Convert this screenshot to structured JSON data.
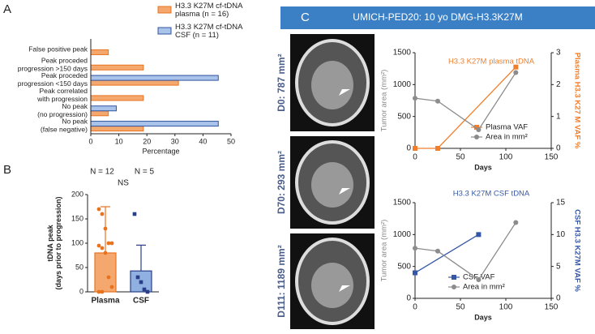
{
  "panel_labels": [
    "A",
    "B",
    "C"
  ],
  "header": "UMICH-PED20: 10 yo DMG-H3.3K27M",
  "images": [
    {
      "label": "D0: 787 mm²"
    },
    {
      "label": "D70: 293 mm²"
    },
    {
      "label": "D111: 1189 mm²"
    }
  ],
  "chart_data": [
    {
      "type": "hbar",
      "categories": [
        "False positive peak",
        "Peak proceded\nprogression >150 days",
        "Peak proceded\nprogression <150 days",
        "Peak correlated\nwith progression",
        "No peak\n(no progression)",
        "No peak\n(false negative)"
      ],
      "series": [
        {
          "name": "H3.3 K27M cf-tDNA\nplasma (n = 16)",
          "color": "#f5a86e",
          "stroke": "#e8731f",
          "values": [
            6.25,
            18.75,
            31.25,
            18.75,
            6.25,
            18.75
          ]
        },
        {
          "name": "H3.3 K27M cf-tDNA\nCSF (n = 11)",
          "color": "#a9c3ea",
          "stroke": "#2f54a0",
          "values": [
            0,
            0,
            45.45,
            0,
            9.09,
            45.45
          ]
        }
      ],
      "xlabel": "Percentage",
      "xlim": [
        0,
        50
      ],
      "xticks": [
        0,
        10,
        20,
        30,
        40,
        50
      ]
    },
    {
      "type": "bar",
      "categories": [
        "Plasma",
        "CSF"
      ],
      "values": [
        80,
        43
      ],
      "errors": [
        95,
        53
      ],
      "points": [
        [
          170,
          160,
          130,
          100,
          100,
          95,
          90,
          80,
          30,
          10,
          0,
          0
        ],
        [
          160,
          30,
          20,
          5,
          0
        ]
      ],
      "colors": [
        "#f5a86e",
        "#8fb0e0"
      ],
      "point_colors": [
        "#e8731f",
        "#2a3f87"
      ],
      "n_labels": [
        "N = 12",
        "N = 5"
      ],
      "annotation": "NS",
      "ylabel": "tDNA peak\n(days prior to progression)",
      "ylim": [
        0,
        200
      ],
      "yticks": [
        0,
        50,
        100,
        150,
        200
      ]
    },
    {
      "type": "line",
      "title": "H3.3 K27M plasma tDNA",
      "xlabel": "Days",
      "ylabel": "Tumor area (mm²)",
      "y2label": "Plasma H3.3 K27 M VAF %",
      "xlim": [
        0,
        150
      ],
      "xticks": [
        0,
        50,
        100,
        150
      ],
      "ylim": [
        0,
        1500
      ],
      "yticks": [
        0,
        500,
        1000,
        1500
      ],
      "y2lim": [
        0,
        3
      ],
      "y2ticks": [
        0,
        1,
        2,
        3
      ],
      "legend": "lower right",
      "series": [
        {
          "name": "Plasma VAF",
          "color": "#f07f2d",
          "marker": "square",
          "axis": "y2",
          "x": [
            0,
            25,
            111
          ],
          "values": [
            0,
            0,
            2.55
          ]
        },
        {
          "name": "Area in mm²",
          "color": "#8c8c8c",
          "marker": "circle",
          "axis": "y",
          "x": [
            0,
            25,
            70,
            111
          ],
          "values": [
            787,
            740,
            293,
            1189
          ]
        }
      ]
    },
    {
      "type": "line",
      "title": "H3.3 K27M CSF tDNA",
      "xlabel": "Days",
      "ylabel": "Tumor area (mm²)",
      "y2label": "CSF H3.3 K27M VAF %",
      "xlim": [
        0,
        150
      ],
      "xticks": [
        0,
        50,
        100,
        150
      ],
      "ylim": [
        0,
        1500
      ],
      "yticks": [
        0,
        500,
        1000,
        1500
      ],
      "y2lim": [
        0,
        15
      ],
      "y2ticks": [
        0,
        5,
        10,
        15
      ],
      "legend": "lower left",
      "series": [
        {
          "name": "CSF VAF",
          "color": "#3558a6",
          "marker": "square",
          "axis": "y2",
          "x": [
            0,
            70
          ],
          "values": [
            4,
            10
          ]
        },
        {
          "name": "Area in mm²",
          "color": "#8c8c8c",
          "marker": "circle",
          "axis": "y",
          "x": [
            0,
            25,
            70,
            111
          ],
          "values": [
            787,
            740,
            293,
            1189
          ]
        }
      ]
    }
  ]
}
